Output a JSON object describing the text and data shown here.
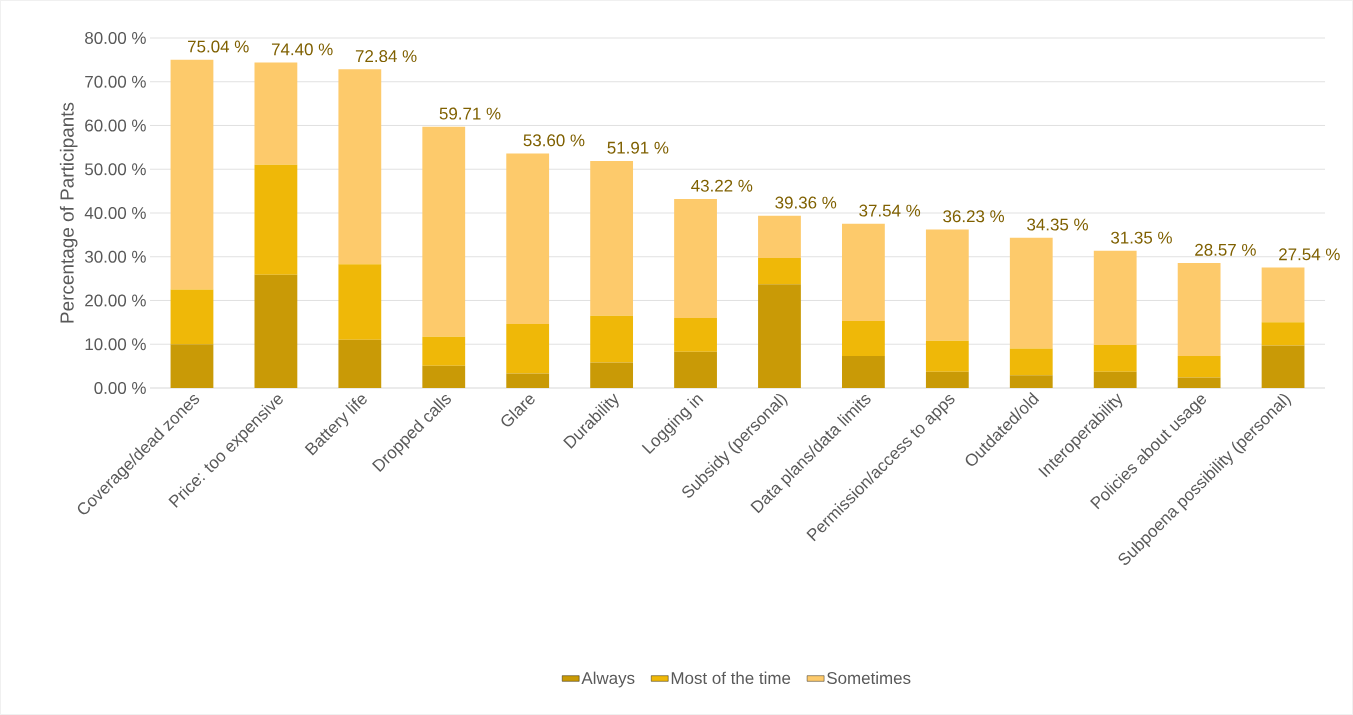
{
  "chart_data": {
    "type": "bar",
    "stacked": true,
    "ylabel": "Percentage of Participants",
    "categories": [
      "Coverage/dead zones",
      "Price: too expensive",
      "Battery life",
      "Dropped calls",
      "Glare",
      "Durability",
      "Logging in",
      "Subsidy (personal)",
      "Data plans/data limits",
      "Permission/access to apps",
      "Outdated/old",
      "Interoperability",
      "Policies about usage",
      "Subpoena possibility (personal)"
    ],
    "series": [
      {
        "name": "Always",
        "color": "#c99a06",
        "values": [
          10.0,
          25.9,
          11.0,
          5.1,
          3.3,
          5.8,
          8.3,
          23.7,
          7.3,
          3.7,
          2.9,
          3.7,
          2.4,
          9.7
        ]
      },
      {
        "name": "Most of the time",
        "color": "#efb808",
        "values": [
          12.5,
          25.1,
          17.3,
          6.6,
          11.3,
          10.7,
          7.7,
          6.0,
          8.0,
          7.1,
          6.1,
          6.1,
          4.9,
          5.3
        ]
      },
      {
        "name": "Sometimes",
        "color": "#fdca6b",
        "values": [
          52.54,
          23.4,
          44.54,
          48.01,
          39.0,
          35.41,
          27.22,
          9.66,
          22.24,
          25.43,
          25.35,
          21.55,
          21.27,
          12.54
        ]
      }
    ],
    "totals": [
      "75.04 %",
      "74.40 %",
      "72.84 %",
      "59.71 %",
      "53.60 %",
      "51.91 %",
      "43.22 %",
      "39.36 %",
      "37.54 %",
      "36.23 %",
      "34.35 %",
      "31.35 %",
      "28.57 %",
      "27.54 %"
    ],
    "ylim": [
      0,
      80
    ],
    "yticks": [
      {
        "value": 0,
        "label": "0.00 %"
      },
      {
        "value": 10,
        "label": "10.00 %"
      },
      {
        "value": 20,
        "label": "20.00 %"
      },
      {
        "value": 30,
        "label": "30.00 %"
      },
      {
        "value": 40,
        "label": "40.00 %"
      },
      {
        "value": 50,
        "label": "50.00 %"
      },
      {
        "value": 60,
        "label": "60.00 %"
      },
      {
        "value": 70,
        "label": "70.00 %"
      },
      {
        "value": 80,
        "label": "80.00 %"
      }
    ],
    "grid": "y",
    "legend": "bottom"
  }
}
